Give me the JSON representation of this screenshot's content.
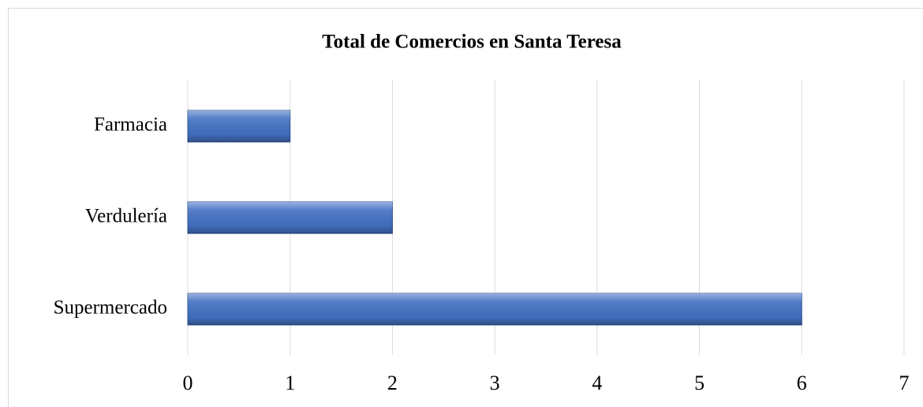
{
  "chart_data": {
    "type": "bar",
    "orientation": "horizontal",
    "title": "Total de Comercios en Santa Teresa",
    "categories": [
      "Farmacia",
      "Verdulería",
      "Supermercado"
    ],
    "values": [
      1,
      2,
      6
    ],
    "color": "#4472c4",
    "xlim": [
      0,
      7
    ],
    "xticks": [
      0,
      1,
      2,
      3,
      4,
      5,
      6,
      7
    ],
    "grid": true
  }
}
